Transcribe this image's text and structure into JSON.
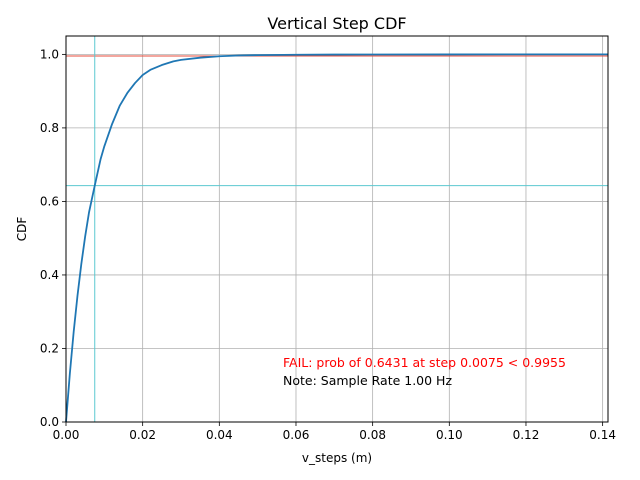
{
  "chart_data": {
    "type": "line",
    "title": "Vertical Step CDF",
    "xlabel": "v_steps (m)",
    "ylabel": "CDF",
    "xlim": [
      0,
      0.1414
    ],
    "ylim": [
      0,
      1.05
    ],
    "xticks": [
      0.0,
      0.02,
      0.04,
      0.06,
      0.08,
      0.1,
      0.12,
      0.14
    ],
    "xtick_labels": [
      "0.00",
      "0.02",
      "0.04",
      "0.06",
      "0.08",
      "0.10",
      "0.12",
      "0.14"
    ],
    "yticks": [
      0.0,
      0.2,
      0.4,
      0.6,
      0.8,
      1.0
    ],
    "ytick_labels": [
      "0.0",
      "0.2",
      "0.4",
      "0.6",
      "0.8",
      "1.0"
    ],
    "grid": true,
    "series": [
      {
        "color": "#1f77b4",
        "x": [
          0,
          0.001,
          0.002,
          0.003,
          0.004,
          0.005,
          0.006,
          0.0075,
          0.009,
          0.01,
          0.012,
          0.014,
          0.016,
          0.018,
          0.02,
          0.022,
          0.025,
          0.028,
          0.03,
          0.035,
          0.04,
          0.045,
          0.05,
          0.06,
          0.07,
          0.08,
          0.1,
          0.12,
          0.1414
        ],
        "y": [
          0,
          0.131,
          0.245,
          0.344,
          0.43,
          0.505,
          0.57,
          0.643,
          0.714,
          0.75,
          0.81,
          0.86,
          0.895,
          0.922,
          0.944,
          0.958,
          0.971,
          0.981,
          0.985,
          0.991,
          0.995,
          0.997,
          0.998,
          0.999,
          0.9995,
          0.9997,
          0.9999,
          1.0,
          1.0
        ]
      }
    ],
    "reference_lines": [
      {
        "orientation": "horizontal",
        "value": 0.9955,
        "color": "#e74c3c"
      },
      {
        "orientation": "horizontal",
        "value": 0.6431,
        "color": "#5bc8d0"
      },
      {
        "orientation": "vertical",
        "value": 0.0075,
        "color": "#5bc8d0"
      }
    ],
    "annotations": [
      {
        "text": "FAIL: prob of 0.6431 at step 0.0075 < 0.9955",
        "color": "#ff0000"
      },
      {
        "text": "Note: Sample Rate 1.00 Hz",
        "color": "#000000"
      }
    ]
  }
}
